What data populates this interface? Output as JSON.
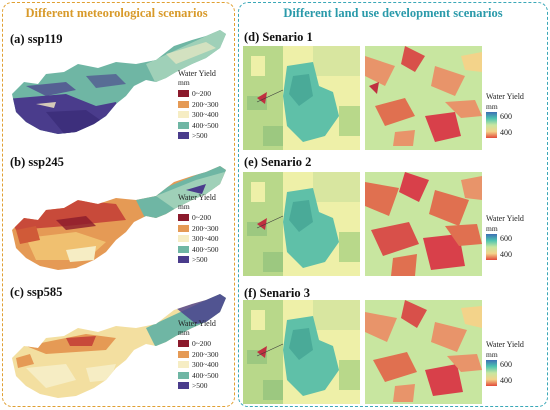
{
  "left_panel": {
    "title": "Different meteorological scenarios",
    "maps": [
      {
        "label": "(a) ssp119"
      },
      {
        "label": "(b) ssp245"
      },
      {
        "label": "(c) ssp585"
      }
    ],
    "legend": {
      "title": "Water Yield",
      "unit": "mm",
      "classes": [
        {
          "label": "0~200",
          "color": "#8b1a2c"
        },
        {
          "label": "200~300",
          "color": "#e59a55"
        },
        {
          "label": "300~400",
          "color": "#f6edc4"
        },
        {
          "label": "400~500",
          "color": "#6fb6a4"
        },
        {
          "label": ">500",
          "color": "#4a3c8c"
        }
      ]
    }
  },
  "right_panel": {
    "title": "Different land use development scenarios",
    "maps": [
      {
        "label": "(d) Senario 1"
      },
      {
        "label": "(e) Senario 2"
      },
      {
        "label": "(f) Senario 3"
      }
    ],
    "legend": {
      "title": "Water Yield",
      "unit": "mm",
      "max_label": "600",
      "min_label": "400",
      "gradient": [
        "#3d6fb5",
        "#4ec4b0",
        "#c8e6a0",
        "#f3d38a",
        "#e24a3a"
      ]
    }
  },
  "colors": {
    "left_border": "#e0a032",
    "right_border": "#3aa8b8",
    "land_green": "#b8d88a",
    "land_yellow": "#eef0a8",
    "urban_teal": "#5fc0a8",
    "hot_red": "#d8404a"
  }
}
